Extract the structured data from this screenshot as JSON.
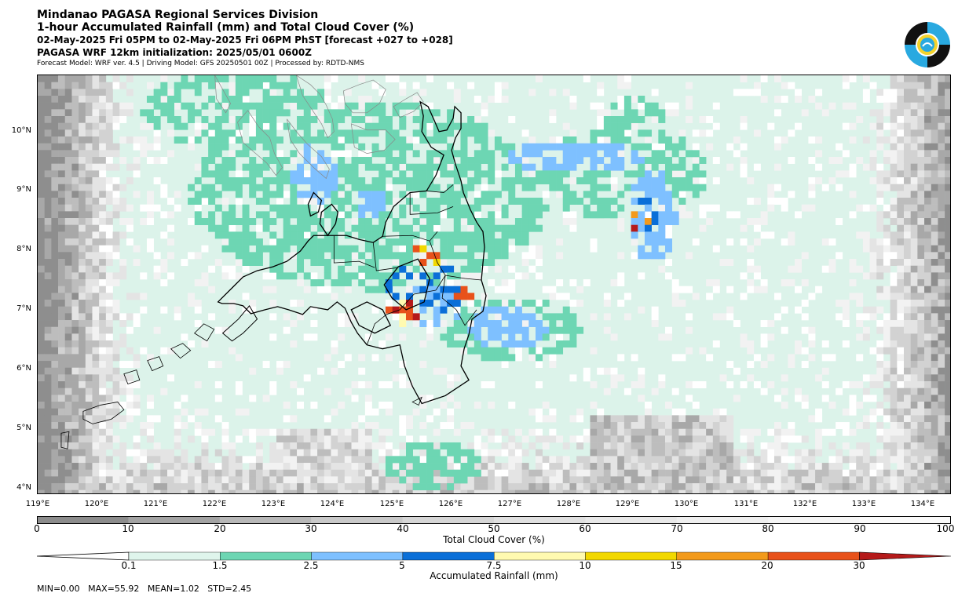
{
  "header": {
    "title": "Mindanao PAGASA Regional Services Division",
    "subtitle": "1-hour Accumulated Rainfall (mm) and Total Cloud Cover (%)",
    "valid_time": "02-May-2025 Fri 05PM to 02-May-2025 Fri 06PM PhST [forecast +027 to +028]",
    "init": "PAGASA WRF 12km initialization: 2025/05/01 0600Z",
    "model_info": "Forecast Model: WRF ver. 4.5 | Driving Model: GFS 20250501 00Z | Processed by: RDTD-NMS"
  },
  "logo": {
    "name": "PAGASA seal"
  },
  "map": {
    "lon_range": [
      119,
      134.5
    ],
    "lat_range": [
      3.9,
      11.0
    ],
    "lat_ticks": [
      "10°N",
      "9°N",
      "8°N",
      "7°N",
      "6°N",
      "5°N",
      "4°N"
    ],
    "lon_ticks": [
      "119°E",
      "120°E",
      "121°E",
      "122°E",
      "123°E",
      "124°E",
      "125°E",
      "126°E",
      "127°E",
      "128°E",
      "129°E",
      "130°E",
      "131°E",
      "132°E",
      "133°E",
      "134°E"
    ]
  },
  "cloud_bar": {
    "label": "Total Cloud Cover (%)",
    "ticks": [
      "0",
      "10",
      "20",
      "30",
      "40",
      "50",
      "60",
      "70",
      "80",
      "90",
      "100"
    ],
    "colors": [
      "#8c8c8c",
      "#a3a3a3",
      "#b8b8b8",
      "#c9c9c9",
      "#d6d6d6",
      "#e0e0e0",
      "#e8e8e8",
      "#efefef",
      "#f5f5f5",
      "#fafafa"
    ]
  },
  "rain_bar": {
    "label": "Accumulated Rainfall (mm)",
    "ticks": [
      "0.1",
      "1.5",
      "2.5",
      "5",
      "7.5",
      "10",
      "15",
      "20",
      "30"
    ],
    "colors": [
      "#dff5ec",
      "#6dd6b3",
      "#7ec0ff",
      "#0a6fd8",
      "#fffab0",
      "#f2d800",
      "#f39a1b",
      "#e8521a",
      "#b51a1a"
    ]
  },
  "stats": {
    "text": "MIN=0.00   MAX=55.92   MEAN=1.02   STD=2.45"
  }
}
